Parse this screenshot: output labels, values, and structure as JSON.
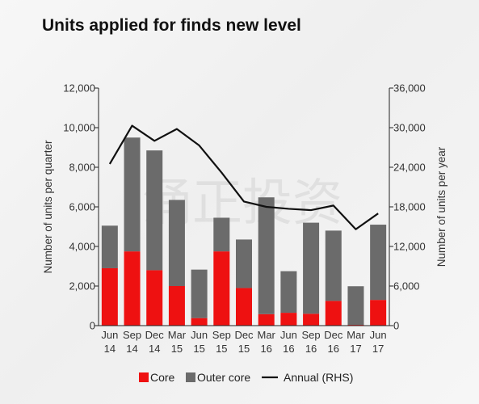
{
  "title": "Units applied for finds new level",
  "watermark": "涌正投资",
  "colors": {
    "core": "#ee1111",
    "outer_core": "#6b6b6b",
    "annual": "#111111",
    "axis": "#222222"
  },
  "chart_data": {
    "type": "bar",
    "stacked": true,
    "categories": [
      [
        "Jun",
        "14"
      ],
      [
        "Sep",
        "14"
      ],
      [
        "Dec",
        "14"
      ],
      [
        "Mar",
        "15"
      ],
      [
        "Jun",
        "15"
      ],
      [
        "Sep",
        "15"
      ],
      [
        "Dec",
        "15"
      ],
      [
        "Mar",
        "16"
      ],
      [
        "Jun",
        "16"
      ],
      [
        "Sep",
        "16"
      ],
      [
        "Dec",
        "16"
      ],
      [
        "Mar",
        "17"
      ],
      [
        "Jun",
        "17"
      ]
    ],
    "series": [
      {
        "name": "Core",
        "axis": "left",
        "type": "bar",
        "values": [
          2900,
          3750,
          2800,
          2000,
          380,
          3750,
          1900,
          580,
          650,
          600,
          1250,
          40,
          1300
        ]
      },
      {
        "name": "Outer core",
        "axis": "left",
        "type": "bar",
        "values": [
          2150,
          5750,
          6050,
          4350,
          2450,
          1700,
          2450,
          5900,
          2100,
          4600,
          3550,
          1950,
          3800
        ]
      },
      {
        "name": "Annual (RHS)",
        "axis": "right",
        "type": "line",
        "values": [
          24500,
          30300,
          28000,
          29800,
          27300,
          23200,
          18800,
          18000,
          17700,
          17500,
          18200,
          14600,
          17000
        ]
      }
    ],
    "ylabel": "Number of units per quarter",
    "y2label": "Number of units per year",
    "ylim": [
      0,
      12000
    ],
    "y2lim": [
      0,
      36000
    ],
    "yticks": [
      "0",
      "2,000",
      "4,000",
      "6,000",
      "8,000",
      "10,000",
      "12,000"
    ],
    "y2ticks": [
      "0",
      "6,000",
      "12,000",
      "18,000",
      "24,000",
      "30,000",
      "36,000"
    ],
    "legend_position": "bottom",
    "grid": false
  }
}
